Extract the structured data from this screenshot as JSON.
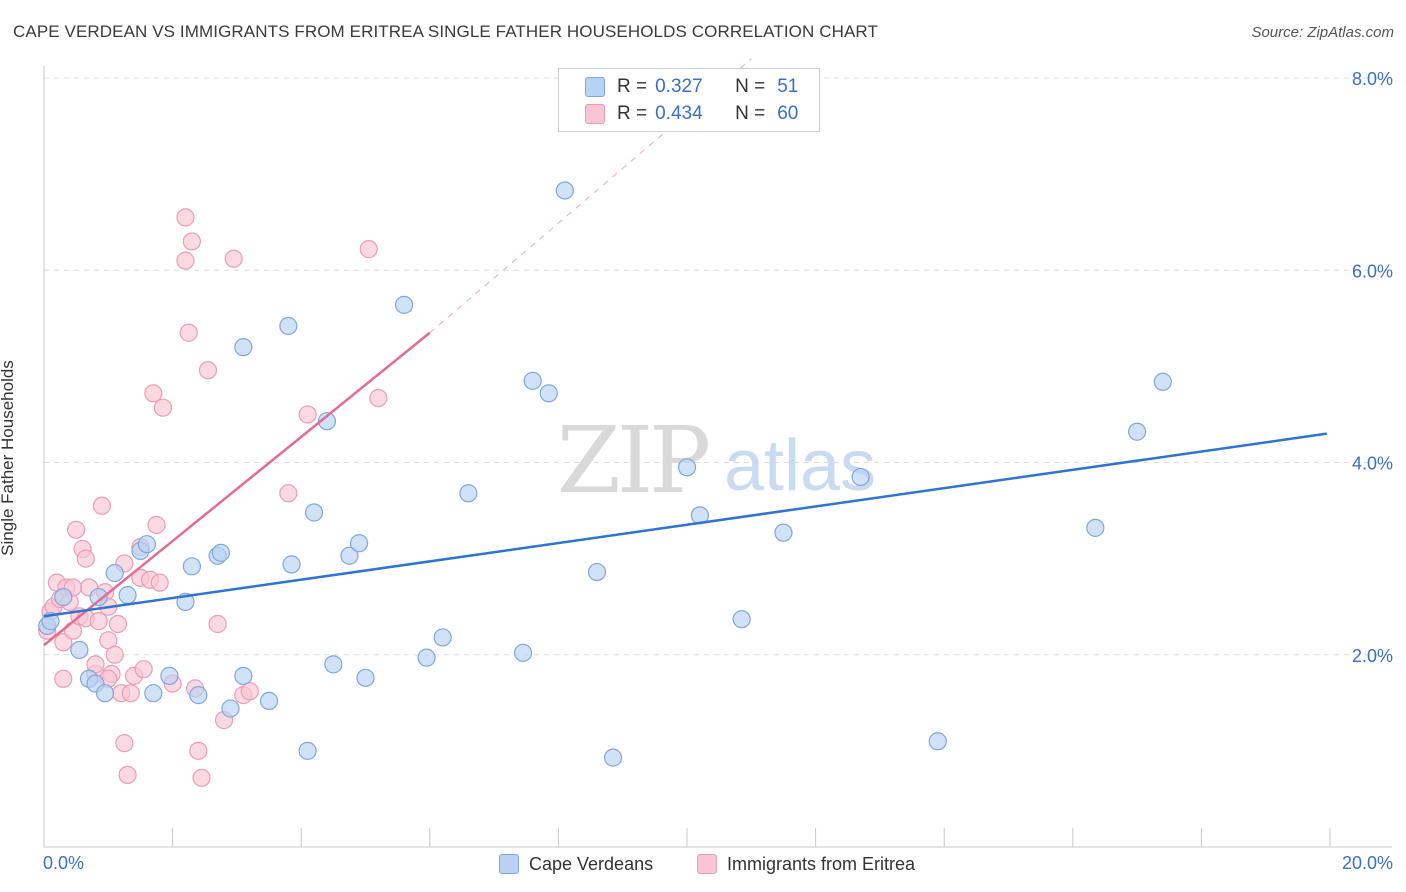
{
  "title": "CAPE VERDEAN VS IMMIGRANTS FROM ERITREA SINGLE FATHER HOUSEHOLDS CORRELATION CHART",
  "source": "Source: ZipAtlas.com",
  "watermark": {
    "zip": "ZIP",
    "atlas": "atlas"
  },
  "legend": {
    "r_label": "R =",
    "n_label": "N =",
    "rows": [
      {
        "r": "0.327",
        "n": "51"
      },
      {
        "r": "0.434",
        "n": "60"
      }
    ]
  },
  "colors": {
    "blue_fill": "#b9d2f3",
    "blue_stroke": "#7ea7e0",
    "blue_line": "#2f74d0",
    "pink_fill": "#f9c4d3",
    "pink_stroke": "#eb9db4",
    "pink_line": "#e36b95",
    "tick_label": "#3a6fc8",
    "grid": "#dcdcdc"
  },
  "chart_data": {
    "type": "scatter",
    "title": "CAPE VERDEAN VS IMMIGRANTS FROM ERITREA SINGLE FATHER HOUSEHOLDS CORRELATION CHART",
    "xlabel": "",
    "ylabel": "Single Father Households",
    "xlim": [
      0,
      20
    ],
    "ylim": [
      0,
      8.0
    ],
    "x_tick_labels": [
      "0.0%",
      "20.0%"
    ],
    "y_ticks": [
      2.0,
      4.0,
      6.0,
      8.0
    ],
    "y_tick_labels": [
      "2.0%",
      "4.0%",
      "6.0%",
      "8.0%"
    ],
    "series": [
      {
        "name": "Cape Verdeans",
        "color": "blue",
        "trend": {
          "x": [
            0.0,
            19.95
          ],
          "y": [
            2.4,
            4.3
          ]
        },
        "points": [
          [
            0.05,
            2.3
          ],
          [
            0.1,
            2.35
          ],
          [
            0.3,
            2.6
          ],
          [
            0.55,
            2.05
          ],
          [
            0.7,
            1.75
          ],
          [
            0.8,
            1.7
          ],
          [
            0.85,
            2.6
          ],
          [
            0.95,
            1.6
          ],
          [
            1.1,
            2.85
          ],
          [
            1.3,
            2.62
          ],
          [
            1.5,
            3.08
          ],
          [
            1.6,
            3.15
          ],
          [
            1.7,
            1.6
          ],
          [
            1.95,
            1.78
          ],
          [
            2.2,
            2.55
          ],
          [
            2.3,
            2.92
          ],
          [
            2.4,
            1.58
          ],
          [
            2.7,
            3.03
          ],
          [
            2.75,
            3.06
          ],
          [
            2.9,
            1.44
          ],
          [
            3.1,
            5.2
          ],
          [
            3.1,
            1.78
          ],
          [
            3.5,
            1.52
          ],
          [
            3.8,
            5.42
          ],
          [
            3.85,
            2.94
          ],
          [
            4.1,
            1.0
          ],
          [
            4.2,
            3.48
          ],
          [
            4.4,
            4.43
          ],
          [
            4.5,
            1.9
          ],
          [
            4.75,
            3.03
          ],
          [
            4.9,
            3.16
          ],
          [
            5.0,
            1.76
          ],
          [
            5.6,
            5.64
          ],
          [
            5.95,
            1.97
          ],
          [
            6.2,
            2.18
          ],
          [
            6.6,
            3.68
          ],
          [
            7.45,
            2.02
          ],
          [
            7.6,
            4.85
          ],
          [
            7.85,
            4.72
          ],
          [
            8.1,
            6.83
          ],
          [
            8.6,
            2.86
          ],
          [
            8.85,
            0.93
          ],
          [
            10.0,
            3.95
          ],
          [
            10.2,
            3.45
          ],
          [
            10.85,
            2.37
          ],
          [
            11.5,
            3.27
          ],
          [
            12.7,
            3.85
          ],
          [
            13.9,
            1.1
          ],
          [
            16.35,
            3.32
          ],
          [
            17.0,
            4.32
          ],
          [
            17.4,
            4.84
          ]
        ]
      },
      {
        "name": "Immigrants from Eritrea",
        "color": "pink",
        "trend": {
          "x": [
            0.0,
            6.0
          ],
          "y": [
            2.1,
            5.35
          ]
        },
        "trend_extension": {
          "x": [
            6.0,
            11.0
          ],
          "y": [
            5.35,
            8.2
          ]
        },
        "points": [
          [
            0.05,
            2.25
          ],
          [
            0.1,
            2.45
          ],
          [
            0.15,
            2.5
          ],
          [
            0.2,
            2.75
          ],
          [
            0.25,
            2.58
          ],
          [
            0.3,
            2.13
          ],
          [
            0.3,
            1.75
          ],
          [
            0.35,
            2.7
          ],
          [
            0.4,
            2.55
          ],
          [
            0.45,
            2.25
          ],
          [
            0.5,
            3.3
          ],
          [
            0.55,
            2.4
          ],
          [
            0.6,
            3.1
          ],
          [
            0.65,
            2.38
          ],
          [
            0.65,
            3.0
          ],
          [
            0.7,
            2.7
          ],
          [
            0.8,
            1.8
          ],
          [
            0.8,
            1.9
          ],
          [
            0.85,
            2.35
          ],
          [
            0.9,
            3.55
          ],
          [
            0.95,
            2.65
          ],
          [
            1.0,
            2.5
          ],
          [
            1.0,
            2.15
          ],
          [
            1.05,
            1.8
          ],
          [
            1.1,
            2.0
          ],
          [
            1.15,
            2.32
          ],
          [
            1.2,
            1.6
          ],
          [
            1.25,
            2.95
          ],
          [
            1.25,
            1.08
          ],
          [
            1.3,
            0.75
          ],
          [
            1.35,
            1.6
          ],
          [
            1.4,
            1.78
          ],
          [
            1.5,
            3.12
          ],
          [
            1.5,
            2.8
          ],
          [
            1.55,
            1.85
          ],
          [
            1.65,
            2.78
          ],
          [
            1.7,
            4.72
          ],
          [
            1.75,
            3.35
          ],
          [
            1.8,
            2.75
          ],
          [
            1.85,
            4.57
          ],
          [
            2.0,
            1.7
          ],
          [
            2.2,
            6.55
          ],
          [
            2.2,
            6.1
          ],
          [
            2.25,
            5.35
          ],
          [
            2.3,
            6.3
          ],
          [
            2.35,
            1.65
          ],
          [
            2.4,
            1.0
          ],
          [
            2.45,
            0.72
          ],
          [
            2.55,
            4.96
          ],
          [
            2.7,
            2.32
          ],
          [
            2.8,
            1.32
          ],
          [
            2.95,
            6.12
          ],
          [
            3.1,
            1.58
          ],
          [
            3.2,
            1.62
          ],
          [
            3.8,
            3.68
          ],
          [
            4.1,
            4.5
          ],
          [
            5.05,
            6.22
          ],
          [
            5.2,
            4.67
          ],
          [
            1.0,
            1.75
          ],
          [
            0.45,
            2.7
          ]
        ]
      }
    ]
  },
  "bottom_legend": [
    {
      "label": "Cape Verdeans"
    },
    {
      "label": "Immigrants from Eritrea"
    }
  ]
}
